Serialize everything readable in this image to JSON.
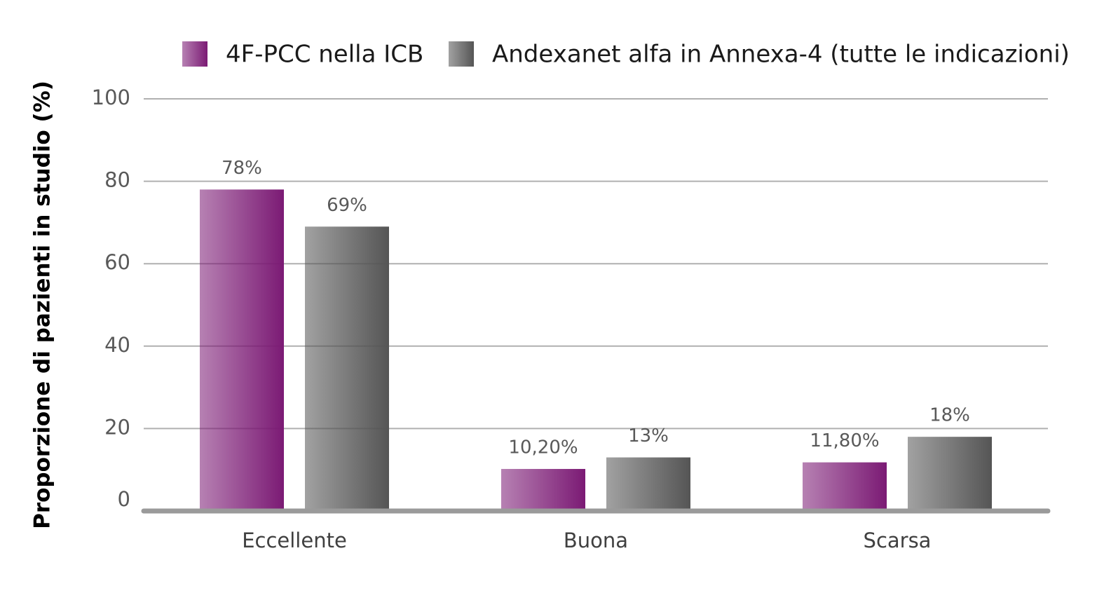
{
  "chart_data": {
    "type": "bar",
    "y_label": "Proporzione di pazienti in studio (%)",
    "categories": [
      "Eccellente",
      "Buona",
      "Scarsa"
    ],
    "series": [
      {
        "name": "4F-PCC nella ICB",
        "color": "#7b1a74",
        "values": [
          78,
          10.2,
          11.8
        ],
        "value_labels": [
          "78%",
          "10,20%",
          "11,80%"
        ]
      },
      {
        "name": "Andexanet alfa in Annexa-4 (tutte le indicazioni)",
        "color": "#555555",
        "values": [
          69,
          13,
          18
        ],
        "value_labels": [
          "69%",
          "13%",
          "18%"
        ]
      }
    ],
    "ylim": [
      0,
      100
    ],
    "yticks": [
      0,
      20,
      40,
      60,
      80,
      100
    ],
    "grid": true,
    "legend": "top"
  }
}
